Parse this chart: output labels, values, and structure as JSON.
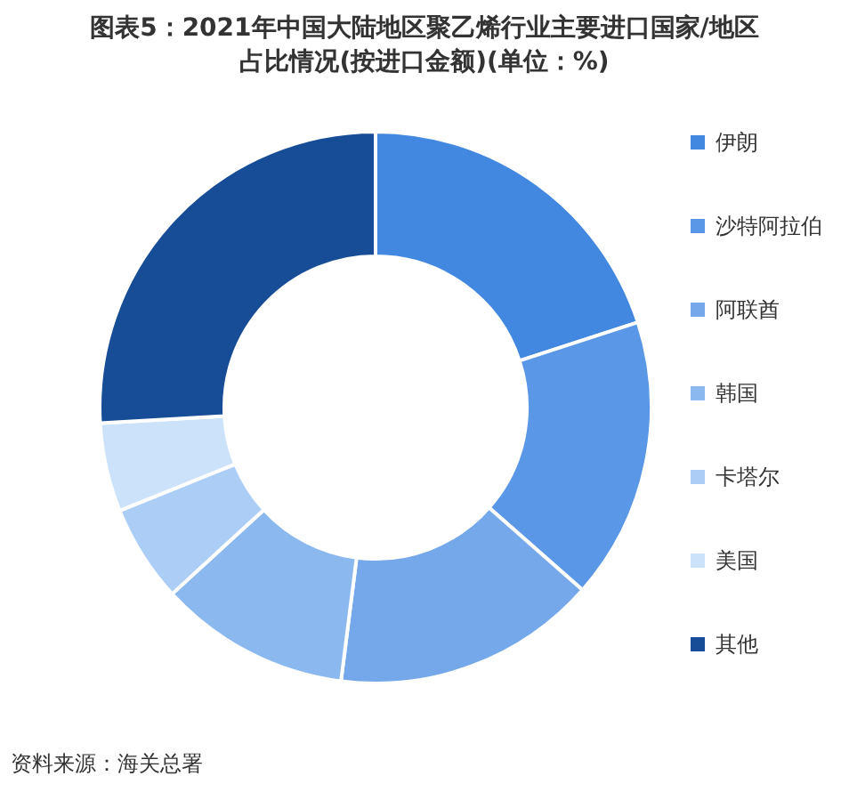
{
  "chart_data": {
    "type": "donut",
    "title": "图表5：2021年中国大陆地区聚乙烯行业主要进口国家/地区占比情况(按进口金额)(单位：%)",
    "categories": [
      "伊朗",
      "沙特阿拉伯",
      "阿联酋",
      "韩国",
      "卡塔尔",
      "美国",
      "其他"
    ],
    "values": [
      20,
      16.5,
      15.5,
      11.2,
      5.7,
      5.2,
      25.9
    ],
    "colors": [
      "#4287e0",
      "#5a97e6",
      "#75a8ea",
      "#8cb8f0",
      "#abcdf6",
      "#cce2fb",
      "#164d96"
    ],
    "legend": "right",
    "annotations": [
      "资料来源：海关总署"
    ]
  }
}
